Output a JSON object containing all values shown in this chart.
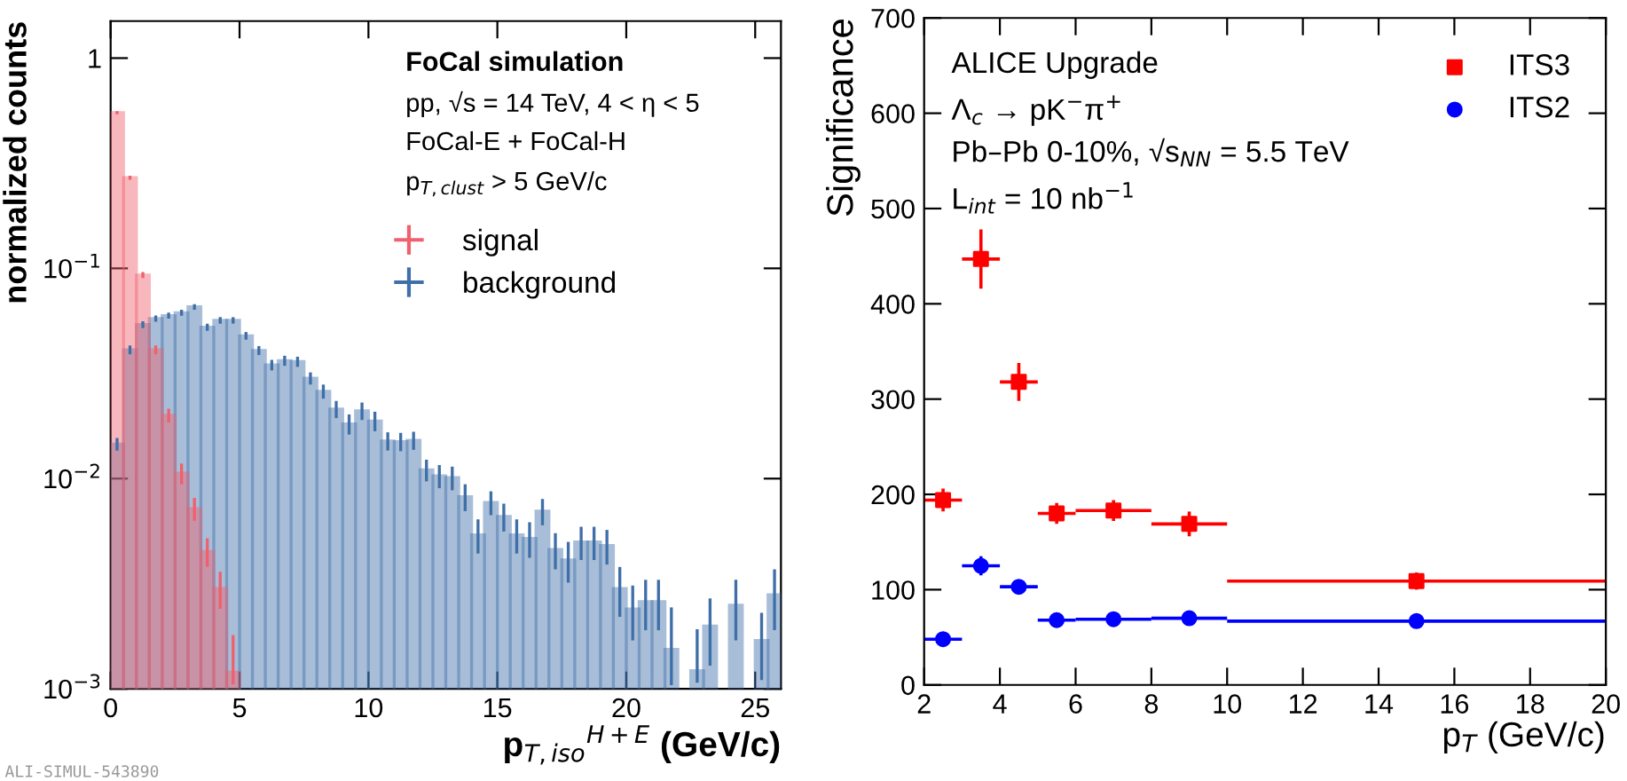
{
  "chart_data": [
    {
      "type": "histogram",
      "xlabel": "p$_{T,iso}$$^{H+E}$ (GeV/c)",
      "ylabel": "normalized counts",
      "log": "y",
      "legend": "top right",
      "bins": [
        0,
        0.5,
        1,
        1.5,
        2,
        2.5,
        3,
        3.5,
        4,
        4.5,
        5,
        5.5,
        6,
        6.5,
        7,
        7.5,
        8,
        8.5,
        9,
        9.5,
        10,
        10.5,
        11,
        11.5,
        12,
        12.5,
        13,
        13.5,
        14,
        14.5,
        15,
        15.5,
        16,
        16.5,
        17,
        17.5,
        18,
        18.5,
        19,
        19.5,
        20,
        20.5,
        21,
        21.5,
        22,
        22.5,
        23,
        23.5,
        24,
        24.5,
        25,
        25.5,
        26
      ],
      "xlim": [
        0,
        26
      ],
      "xticks": [
        0,
        5,
        10,
        15,
        20,
        25
      ],
      "ylim": [
        0.001,
        1.5
      ],
      "yticks": [
        {
          "value": 0.001,
          "label": "10$^{−3}$"
        },
        {
          "value": 0.01,
          "label": "10$^{−2}$"
        },
        {
          "value": 0.1,
          "label": "10$^{−1}$"
        },
        {
          "value": 1,
          "label": "1"
        }
      ],
      "series": [
        {
          "name": "signal",
          "color": "#f0606e",
          "values": [
            0.55,
            0.27,
            0.093,
            0.041,
            0.02,
            0.0106,
            0.0072,
            0.0045,
            0.003,
            0.0012,
            null,
            null,
            null,
            null,
            null,
            null,
            null,
            null,
            null,
            null,
            null,
            null,
            null,
            null,
            null,
            null,
            null,
            null,
            null,
            null,
            null,
            null,
            null,
            null,
            null,
            null,
            null,
            null,
            null,
            null,
            null,
            null,
            null,
            null,
            null,
            null,
            null,
            null,
            null,
            null,
            null,
            null
          ],
          "errors": [
            0.01,
            0.006,
            0.003,
            0.002,
            0.0015,
            0.0012,
            0.0009,
            0.0007,
            0.0006,
            [
              0.00105,
              0.0018
            ],
            null,
            null,
            null,
            null,
            null,
            null,
            null,
            null,
            null,
            null,
            null,
            null,
            null,
            null,
            null,
            null,
            null,
            null,
            null,
            null,
            null,
            null,
            null,
            null,
            null,
            null,
            null,
            null,
            null,
            null,
            null,
            null,
            null,
            null,
            null,
            null,
            null,
            null,
            null,
            null,
            null,
            null
          ]
        },
        {
          "name": "background",
          "color": "#3f6fa8",
          "values": [
            0.0146,
            0.041,
            0.054,
            0.0577,
            0.0596,
            0.0615,
            0.0656,
            0.0525,
            0.0566,
            0.0566,
            0.0478,
            0.0407,
            0.0347,
            0.0364,
            0.036,
            0.03,
            0.026,
            0.0214,
            0.0182,
            0.021,
            0.0188,
            0.0151,
            0.015,
            0.0152,
            0.011,
            0.0103,
            0.0101,
            0.0082,
            0.0054,
            0.0077,
            0.0066,
            0.0054,
            0.0052,
            0.007,
            0.0046,
            0.0041,
            0.005,
            0.005,
            0.0048,
            0.003,
            0.0024,
            0.0026,
            0.0026,
            0.00154,
            null,
            0.00122,
            0.00199,
            null,
            0.0025,
            null,
            0.0017,
            0.0028
          ],
          "errors": [
            0.001,
            0.002,
            0.002,
            0.002,
            0.002,
            0.002,
            0.002,
            0.002,
            0.002,
            0.002,
            0.002,
            0.002,
            0.002,
            0.002,
            0.002,
            0.002,
            0.002,
            0.002,
            0.002,
            0.002,
            0.002,
            0.0015,
            0.0015,
            0.0015,
            0.0013,
            0.0013,
            0.0013,
            0.0012,
            0.001,
            0.001,
            0.001,
            0.001,
            0.001,
            0.001,
            0.0009,
            0.0009,
            0.0009,
            0.0009,
            0.0009,
            0.0008,
            0.0007,
            0.0007,
            0.0007,
            [
              0.00104,
              0.00244
            ],
            null,
            [
              0.00107,
              0.00192
            ],
            0.0007,
            null,
            0.0008,
            null,
            0.0006,
            0.0009
          ]
        }
      ],
      "annotations": [
        "FoCal simulation",
        "pp, √s = 14 TeV, 4 < η < 5",
        "FoCal-E + FoCal-H",
        "p$_{T,clust}$ > 5 GeV/c",
        "ALI-SIMUL-543890"
      ]
    },
    {
      "type": "scatter",
      "xlabel": "p$_{T}$ (GeV/c)",
      "ylabel": "Significance",
      "legend": "top right",
      "xlim": [
        2,
        20
      ],
      "xticks": [
        2,
        4,
        6,
        8,
        10,
        12,
        14,
        16,
        18,
        20
      ],
      "ylim": [
        0,
        700
      ],
      "yticks": [
        0,
        100,
        200,
        300,
        400,
        500,
        600,
        700
      ],
      "series": [
        {
          "name": "ITS3",
          "color": "#ff0000",
          "marker": "square",
          "x": [
            2.5,
            3.5,
            4.5,
            5.5,
            7,
            9,
            15
          ],
          "values": [
            194,
            447,
            318,
            180,
            183,
            169,
            109
          ],
          "errors": [
            12,
            31,
            20,
            11,
            11,
            13,
            9
          ],
          "xerrors": [
            0.5,
            0.5,
            0.5,
            0.5,
            1,
            1,
            5
          ]
        },
        {
          "name": "ITS2",
          "color": "#0000ff",
          "marker": "circle",
          "x": [
            2.5,
            3.5,
            4.5,
            5.5,
            7,
            9,
            15
          ],
          "values": [
            48,
            125,
            103,
            68,
            69,
            70,
            67
          ],
          "errors": [
            4,
            10,
            4,
            3,
            3,
            3,
            3
          ],
          "xerrors": [
            0.5,
            0.5,
            0.5,
            0.5,
            1,
            1,
            5
          ]
        }
      ],
      "annotations": [
        "ALICE Upgrade",
        "Λ$_{c}$ → pK$^{−}$π$^{+}$",
        "Pb–Pb 0-10%, √s$_{NN}$ = 5.5 TeV",
        "L$_{int}$ = 10 nb$^{−1}$"
      ]
    }
  ]
}
